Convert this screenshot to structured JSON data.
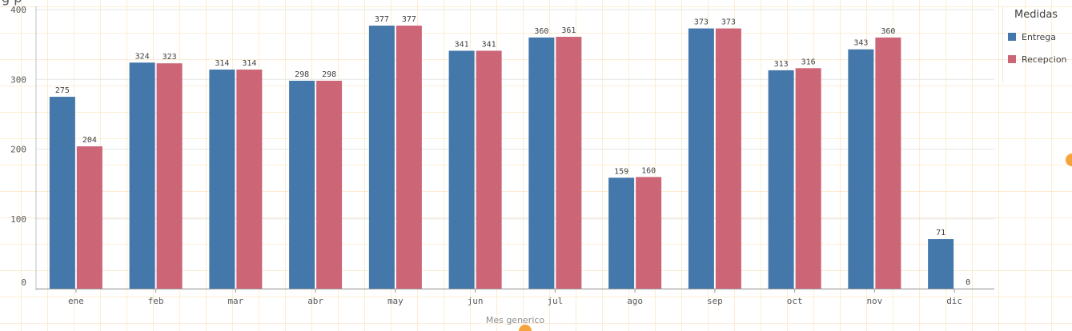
{
  "page": {
    "title_fragment": "g p"
  },
  "chart_data": {
    "type": "bar",
    "categories": [
      "ene",
      "feb",
      "mar",
      "abr",
      "may",
      "jun",
      "jul",
      "ago",
      "sep",
      "oct",
      "nov",
      "dic"
    ],
    "series": [
      {
        "name": "Entrega",
        "color": "#4477aa",
        "values": [
          275,
          324,
          314,
          298,
          377,
          341,
          360,
          159,
          373,
          313,
          343,
          71
        ]
      },
      {
        "name": "Recepcion",
        "color": "#cc6677",
        "values": [
          204,
          323,
          314,
          298,
          377,
          341,
          361,
          160,
          373,
          316,
          360,
          0
        ]
      }
    ],
    "xlabel": "Mes generico",
    "ylabel": "",
    "ylim": [
      0,
      400
    ],
    "yticks": [
      0,
      100,
      200,
      300,
      400
    ],
    "grid": true,
    "legend": {
      "title": "Medidas",
      "placement": "right"
    }
  },
  "handles": {
    "right": "resize-handle",
    "bottom": "resize-handle"
  }
}
